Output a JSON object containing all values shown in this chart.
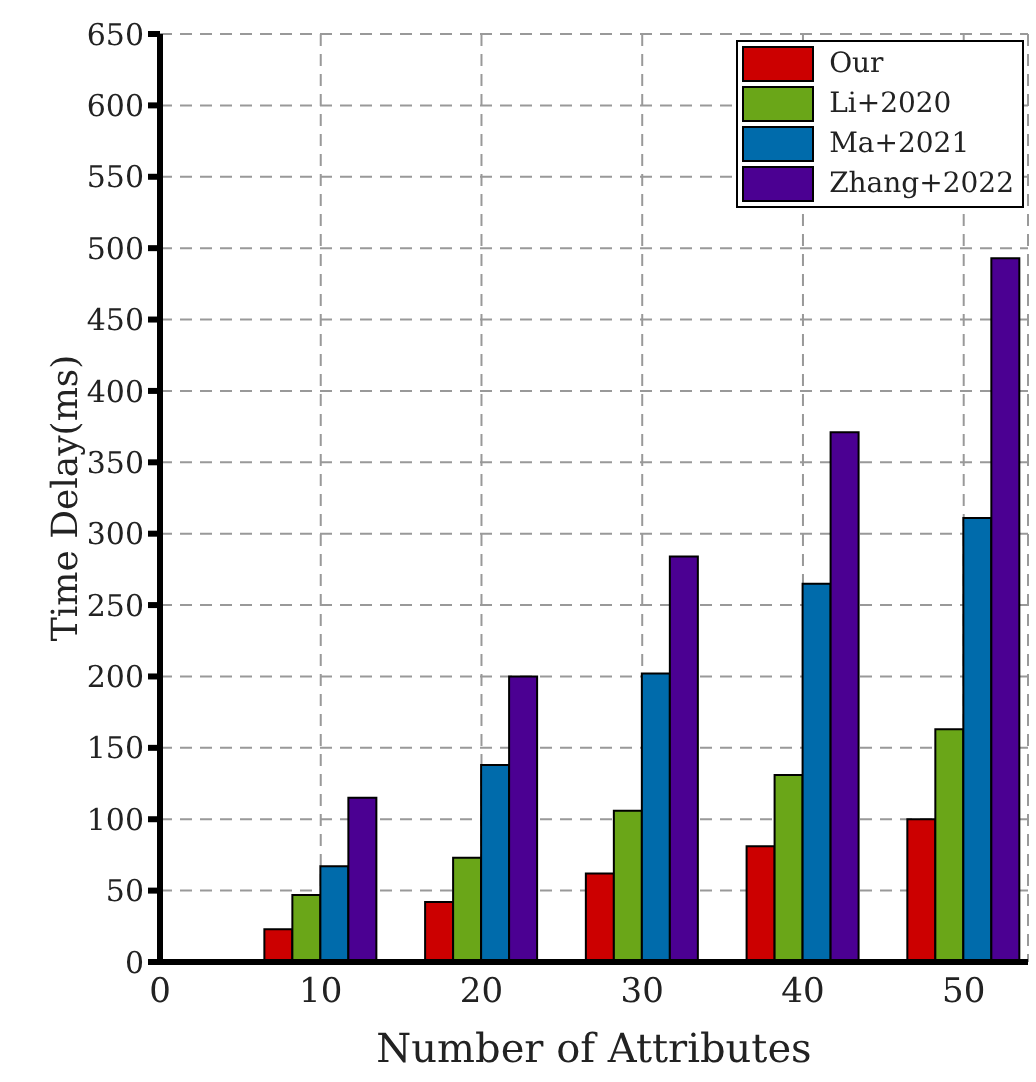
{
  "chart_data": {
    "type": "bar",
    "xlabel": "Number of Attributes",
    "ylabel": "Time Delay(ms)",
    "x": [
      10,
      20,
      30,
      40,
      50
    ],
    "series": [
      {
        "name": "Our",
        "color": "#cc0000",
        "values": [
          23,
          42,
          62,
          81,
          100
        ]
      },
      {
        "name": "Li+2020",
        "color": "#6aa618",
        "values": [
          47,
          73,
          106,
          131,
          163
        ]
      },
      {
        "name": "Ma+2021",
        "color": "#006bab",
        "values": [
          67,
          138,
          202,
          265,
          311
        ]
      },
      {
        "name": "Zhang+2022",
        "color": "#4b0092",
        "values": [
          115,
          200,
          284,
          371,
          493
        ]
      }
    ],
    "xlim": [
      0,
      54
    ],
    "xticks": [
      0,
      10,
      20,
      30,
      40,
      50
    ],
    "ylim": [
      0,
      650
    ],
    "yticks": [
      0,
      50,
      100,
      150,
      200,
      250,
      300,
      350,
      400,
      450,
      500,
      550,
      600,
      650
    ],
    "grid": true,
    "legend": "top right"
  }
}
